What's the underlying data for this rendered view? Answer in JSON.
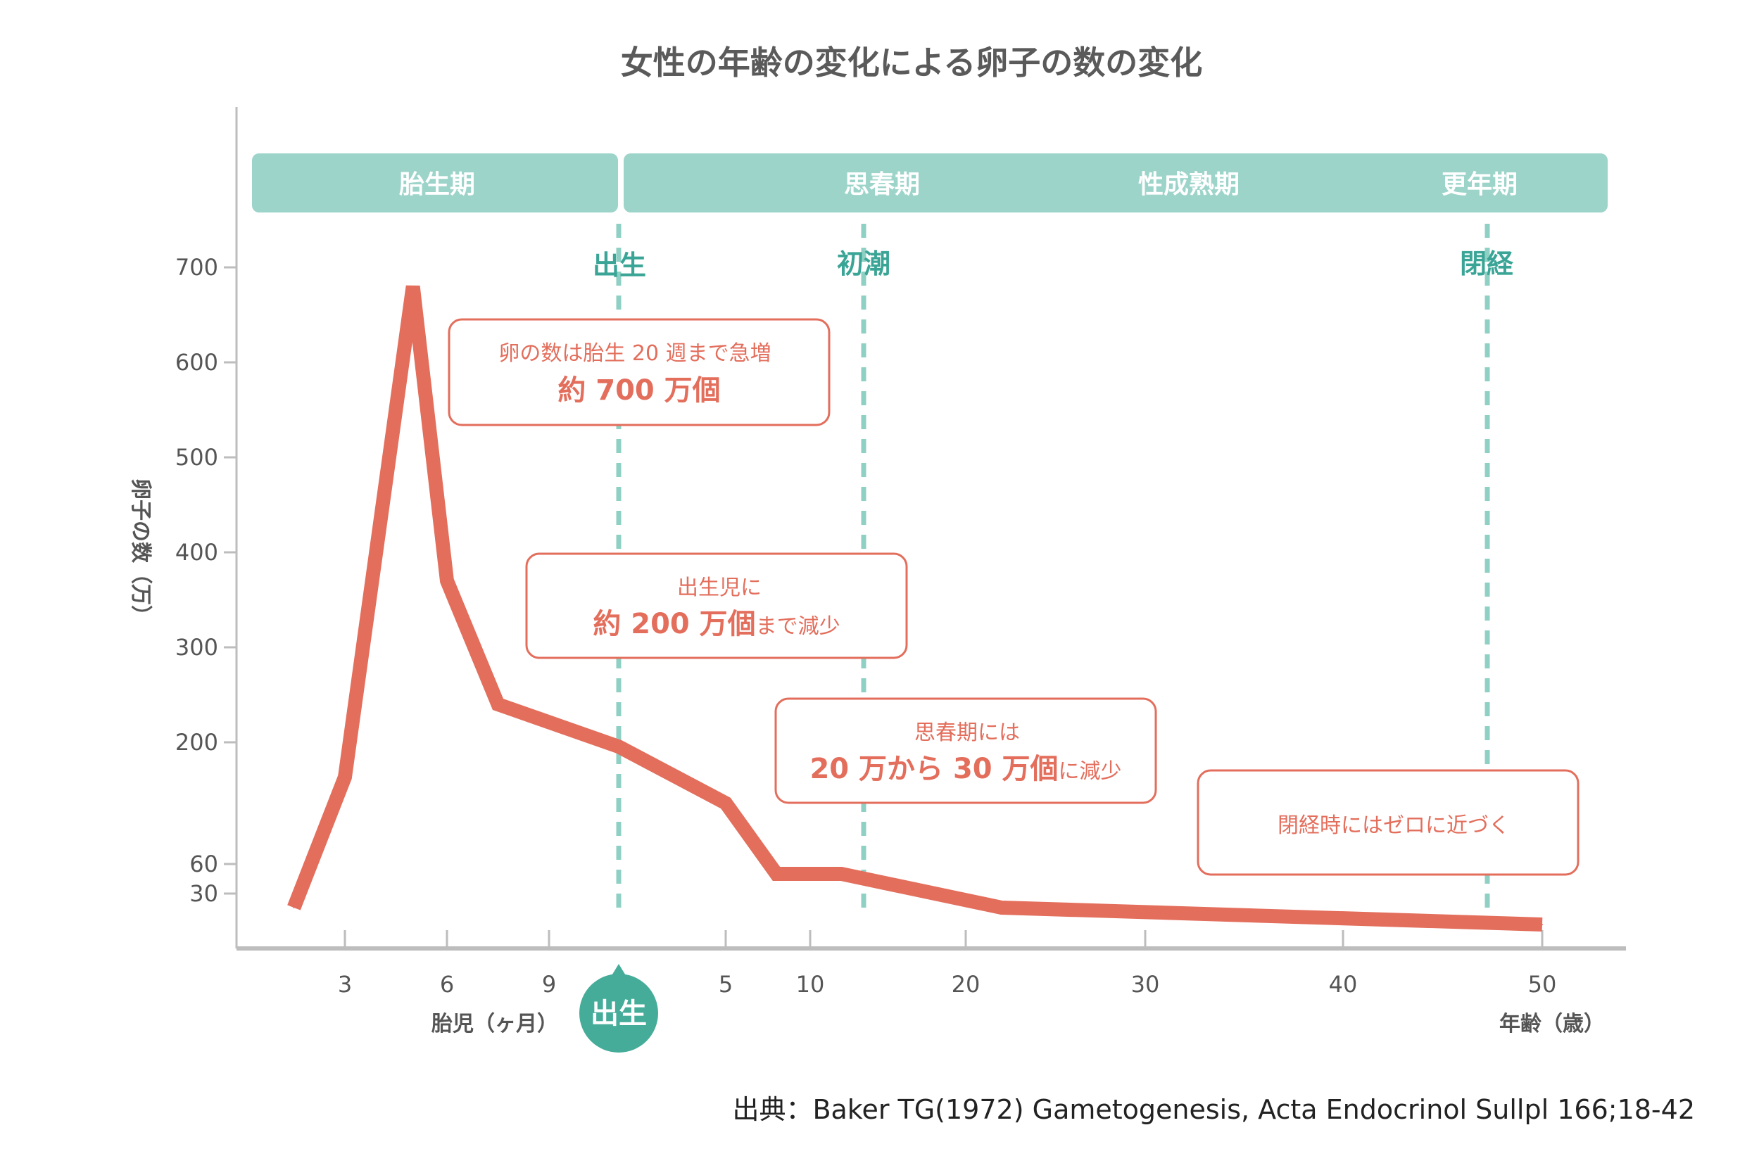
{
  "chart_data": {
    "type": "line",
    "title": "女性の年齢の変化による卵子の数の変化",
    "ylabel": "卵子の数（万）",
    "yticks": [
      700,
      600,
      500,
      400,
      300,
      200,
      60,
      30
    ],
    "x_fetal_label": "胎児（ヶ月）",
    "x_age_label": "年齢（歳）",
    "x_fetal_ticks": [
      "3",
      "6",
      "9"
    ],
    "x_age_ticks": [
      "5",
      "10",
      "20",
      "30",
      "40",
      "50"
    ],
    "birth_badge": "出生",
    "phases": [
      {
        "label": "胎生期"
      },
      {
        "label": "思春期"
      },
      {
        "label": "性成熟期"
      },
      {
        "label": "更年期"
      }
    ],
    "events": [
      {
        "label": "出生"
      },
      {
        "label": "初潮"
      },
      {
        "label": "閉経"
      }
    ],
    "series": [
      {
        "points": [
          {
            "period": "fetal",
            "x": 1.5,
            "y": 20
          },
          {
            "period": "fetal",
            "x": 3,
            "y": 160
          },
          {
            "period": "fetal",
            "x": 5,
            "y": 680
          },
          {
            "period": "fetal",
            "x": 6,
            "y": 370
          },
          {
            "period": "fetal",
            "x": 7.5,
            "y": 240
          },
          {
            "period": "birth",
            "x": 0,
            "y": 195
          },
          {
            "period": "age",
            "x": 5,
            "y": 130
          },
          {
            "period": "age",
            "x": 8,
            "y": 50
          },
          {
            "period": "age",
            "x": 12,
            "y": 50
          },
          {
            "period": "age",
            "x": 22,
            "y": 20
          },
          {
            "period": "age",
            "x": 50,
            "y": 8
          }
        ]
      }
    ],
    "annotations": [
      {
        "small": "卵の数は胎生 20 週まで急増",
        "big": "約 700 万個",
        "suffix": ""
      },
      {
        "small": "出生児に",
        "big": "約 200 万個",
        "suffix": "まで減少"
      },
      {
        "small": "思春期には",
        "big": "20 万から 30 万個",
        "suffix": "に減少"
      },
      {
        "small": "",
        "big": "",
        "suffix": "",
        "text": "閉経時にはゼロに近づく"
      }
    ],
    "colors": {
      "line": "#e36e5c",
      "phase_band": "#9dd4ca",
      "event": "#8fd0c4",
      "event_text": "#3aa596",
      "birth_badge": "#45ac9a",
      "axis": "#bdbdbd"
    }
  },
  "source": "出典：Baker TG(1972) Gametogenesis, Acta Endocrinol Sullpl 166;18-42"
}
